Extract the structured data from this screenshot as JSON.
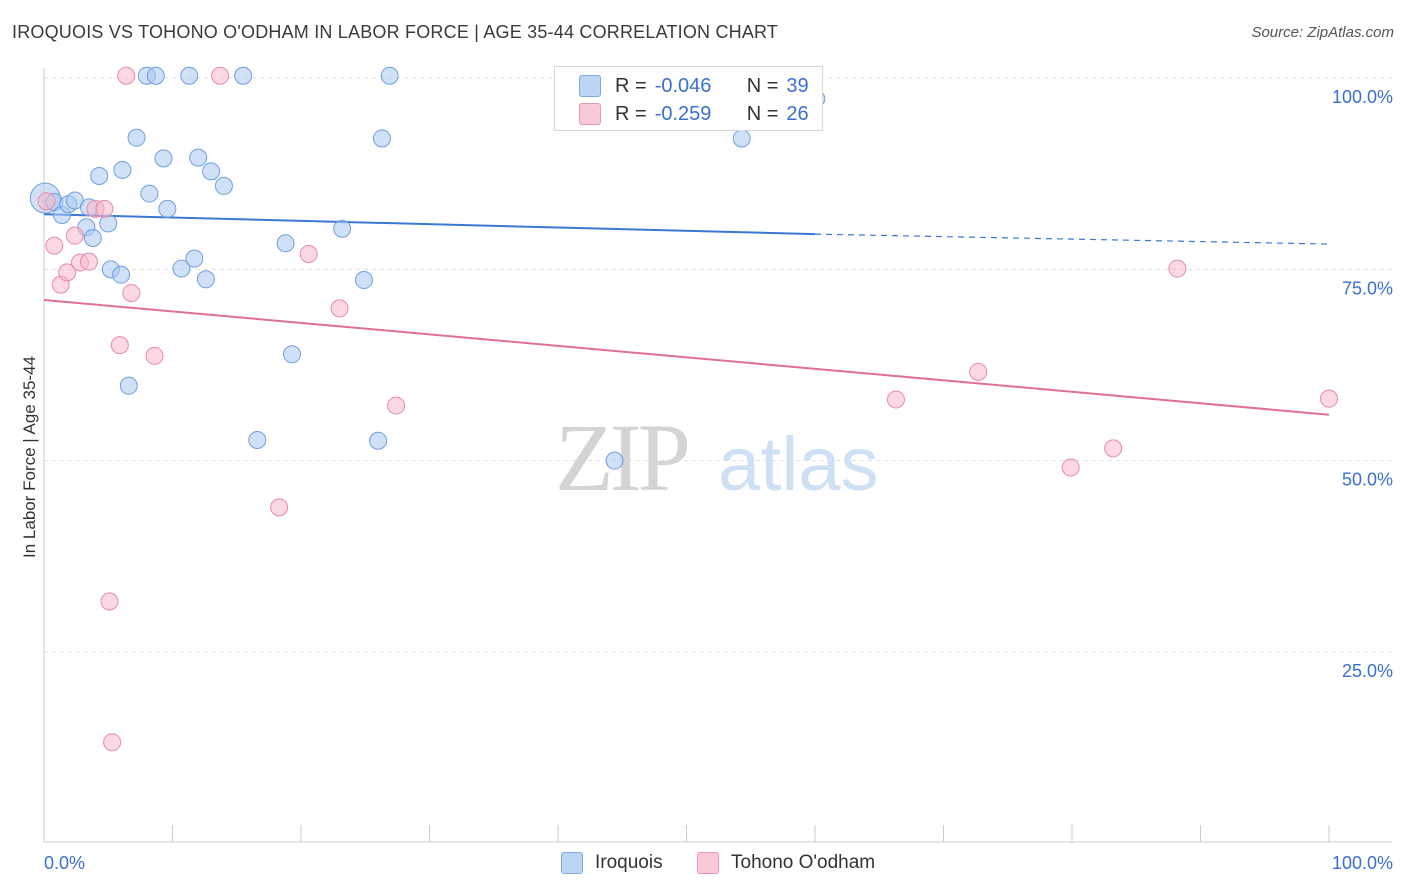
{
  "title": "IROQUOIS VS TOHONO O'ODHAM IN LABOR FORCE | AGE 35-44 CORRELATION CHART",
  "source": "Source: ZipAtlas.com",
  "watermark": {
    "zip": "ZIP",
    "atlas": "atlas"
  },
  "legend": {
    "r_label": "R =",
    "n_label": "N =",
    "series": [
      {
        "name": "Iroquois",
        "r": "-0.046",
        "n": "39",
        "color": "#a9c8f0",
        "stroke": "#6f9ee0"
      },
      {
        "name": "Tohono O'odham",
        "r": "-0.259",
        "n": "26",
        "color": "#f7b8cb",
        "stroke": "#e88aa8"
      }
    ]
  },
  "chart_data": {
    "type": "scatter",
    "title": "IROQUOIS VS TOHONO O'ODHAM IN LABOR FORCE | AGE 35-44 CORRELATION CHART",
    "xlabel": "",
    "ylabel": "In Labor Force | Age 35-44",
    "xlim": [
      0,
      100
    ],
    "ylim": [
      0,
      105
    ],
    "x_tick_labels": [
      "0.0%",
      "100.0%"
    ],
    "y_ticks": [
      25,
      50,
      75,
      100
    ],
    "y_tick_labels": [
      "25.0%",
      "50.0%",
      "75.0%",
      "100.0%"
    ],
    "series": [
      {
        "name": "Iroquois",
        "color": "#a9c8f0",
        "line_color": "#3a78d4",
        "trend": {
          "x0": 0,
          "y0": 82.2,
          "x1": 60,
          "y1": 79.6,
          "dashed_to_x": 100,
          "dashed_to_y": 78.3
        },
        "points": [
          [
            0.1,
            84.3
          ],
          [
            0.8,
            83.8
          ],
          [
            1.4,
            82.1
          ],
          [
            1.9,
            83.5
          ],
          [
            2.4,
            84.0
          ],
          [
            3.5,
            83.1
          ],
          [
            3.3,
            80.5
          ],
          [
            3.8,
            79.1
          ],
          [
            5.0,
            81.0
          ],
          [
            5.2,
            75.0
          ],
          [
            6.0,
            74.3
          ],
          [
            6.1,
            88.0
          ],
          [
            4.3,
            87.2
          ],
          [
            7.2,
            92.2
          ],
          [
            6.6,
            59.8
          ],
          [
            8.2,
            84.9
          ],
          [
            9.3,
            89.5
          ],
          [
            9.6,
            82.9
          ],
          [
            10.7,
            75.1
          ],
          [
            11.7,
            76.4
          ],
          [
            12.0,
            89.6
          ],
          [
            13.0,
            87.8
          ],
          [
            12.6,
            73.7
          ],
          [
            14.0,
            85.9
          ],
          [
            8.0,
            100.3
          ],
          [
            8.7,
            100.3
          ],
          [
            11.3,
            100.3
          ],
          [
            15.5,
            100.3
          ],
          [
            16.6,
            52.7
          ],
          [
            18.8,
            78.4
          ],
          [
            19.3,
            63.9
          ],
          [
            23.2,
            80.3
          ],
          [
            24.9,
            73.6
          ],
          [
            26.3,
            92.1
          ],
          [
            26.0,
            52.6
          ],
          [
            26.9,
            100.3
          ],
          [
            44.4,
            50.0
          ],
          [
            54.3,
            92.1
          ],
          [
            60.1,
            97.3
          ]
        ]
      },
      {
        "name": "Tohono O'odham",
        "color": "#f7b8cb",
        "line_color": "#e07098",
        "trend": {
          "x0": 0,
          "y0": 71.0,
          "x1": 100,
          "y1": 56.0
        },
        "points": [
          [
            0.2,
            83.9
          ],
          [
            0.8,
            78.1
          ],
          [
            1.3,
            73.0
          ],
          [
            1.8,
            74.6
          ],
          [
            2.4,
            79.4
          ],
          [
            2.8,
            75.9
          ],
          [
            3.5,
            76.0
          ],
          [
            4.0,
            82.9
          ],
          [
            4.7,
            82.9
          ],
          [
            5.1,
            31.6
          ],
          [
            5.3,
            13.2
          ],
          [
            5.9,
            65.1
          ],
          [
            6.4,
            100.3
          ],
          [
            6.8,
            71.9
          ],
          [
            8.6,
            63.7
          ],
          [
            13.7,
            100.3
          ],
          [
            18.3,
            43.9
          ],
          [
            20.6,
            77.0
          ],
          [
            23.0,
            69.9
          ],
          [
            27.4,
            57.2
          ],
          [
            66.3,
            58.0
          ],
          [
            72.7,
            61.6
          ],
          [
            79.9,
            49.1
          ],
          [
            83.2,
            51.6
          ],
          [
            88.2,
            75.1
          ],
          [
            100.0,
            58.1
          ]
        ]
      }
    ]
  }
}
